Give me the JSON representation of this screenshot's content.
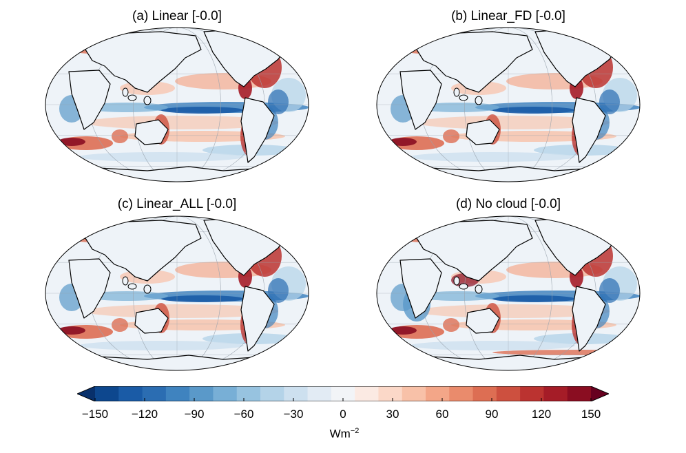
{
  "panels": [
    {
      "title": "(a) Linear [-0.0]"
    },
    {
      "title": "(b) Linear_FD [-0.0]"
    },
    {
      "title": "(c) Linear_ALL [-0.0]"
    },
    {
      "title": "(d) No cloud [-0.0]"
    }
  ],
  "colorbar": {
    "ticks": [
      "−150",
      "−120",
      "−90",
      "−60",
      "−30",
      "0",
      "30",
      "60",
      "90",
      "120",
      "150"
    ],
    "unit_base": "Wm",
    "unit_exp": "−2",
    "colors": [
      "#08306b",
      "#0d478e",
      "#1a5ba6",
      "#2b6db2",
      "#3f83bf",
      "#5a99c9",
      "#78afd6",
      "#97c3e0",
      "#b4d3e8",
      "#cde0ef",
      "#e2ebf4",
      "#f2f4f7",
      "#fbeae3",
      "#fbd8c8",
      "#f8c1a8",
      "#f3a688",
      "#ea8b6c",
      "#dd6e53",
      "#cd503f",
      "#bb3330",
      "#a51c27",
      "#8a0d21",
      "#67001f"
    ]
  }
}
